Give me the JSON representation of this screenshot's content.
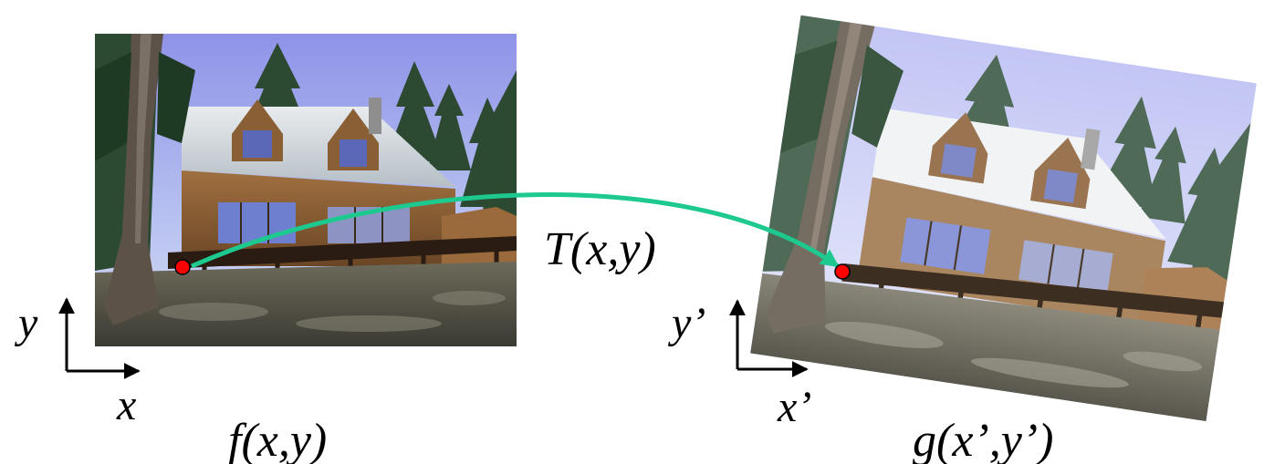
{
  "source_image": {
    "function_label": "f(x,y)",
    "axis_x_label": "x",
    "axis_y_label": "y"
  },
  "warped_image": {
    "function_label": "g(x’,y’)",
    "axis_x_label": "x’",
    "axis_y_label": "y’"
  },
  "transform": {
    "label": "T(x,y)",
    "arrow_color": "#1ec98f",
    "point_color": "#ff0000"
  }
}
